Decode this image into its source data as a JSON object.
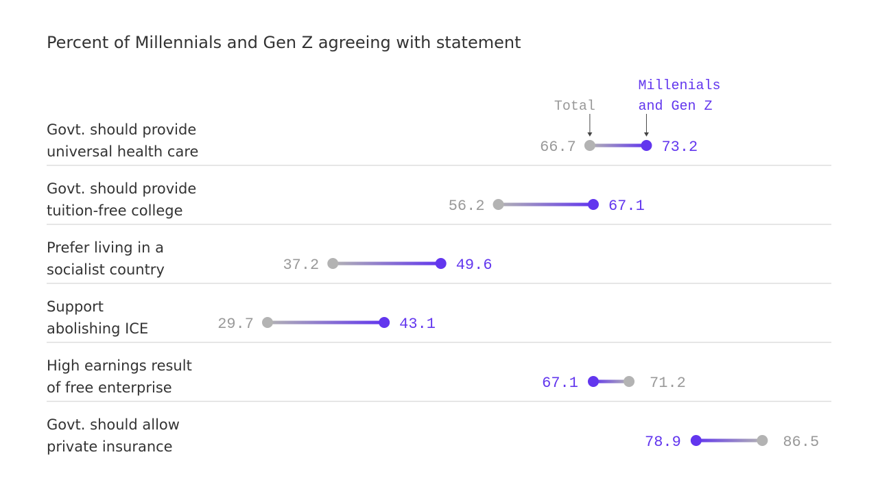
{
  "chart_data": {
    "type": "dumbbell",
    "title": "Percent of Millennials and Gen Z agreeing with statement",
    "legend": {
      "total": "Total",
      "mgz_line1": "Millenials",
      "mgz_line2": "and Gen Z"
    },
    "colors": {
      "total": "#b3b3b3",
      "mgz": "#6236ee",
      "total_text": "#999999",
      "label_text": "#333333",
      "divider": "#cccccc"
    },
    "rows": [
      {
        "line1": "Govt. should provide",
        "line2": "universal health care",
        "total": 66.7,
        "mgz": 73.2
      },
      {
        "line1": "Govt. should provide",
        "line2": "tuition-free college",
        "total": 56.2,
        "mgz": 67.1
      },
      {
        "line1": "Prefer living in a",
        "line2": "socialist country",
        "total": 37.2,
        "mgz": 49.6
      },
      {
        "line1": "Support",
        "line2": "abolishing ICE",
        "total": 29.7,
        "mgz": 43.1
      },
      {
        "line1": "High earnings result",
        "line2": "of free enterprise",
        "total": 71.2,
        "mgz": 67.1
      },
      {
        "line1": "Govt. should allow",
        "line2": "private insurance",
        "total": 86.5,
        "mgz": 78.9
      }
    ]
  }
}
